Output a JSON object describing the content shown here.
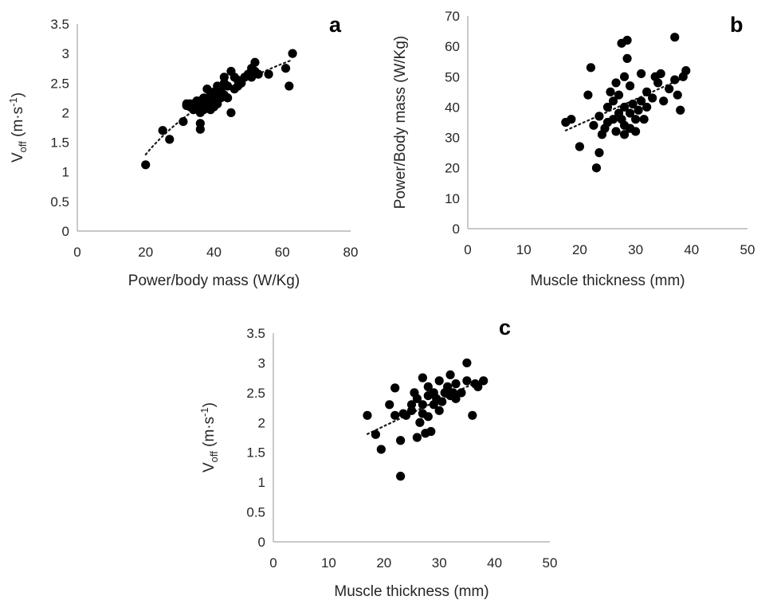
{
  "chart_data": [
    {
      "id": "a",
      "type": "scatter",
      "panel_label": "a",
      "xlabel": "Power/body mass (W/Kg)",
      "ylabel": {
        "main": "V",
        "sub": "off",
        "unit_open": "  (m·s",
        "unit_sup": "-1",
        "unit_close": ")"
      },
      "xlim": [
        0,
        80
      ],
      "ylim": [
        0,
        3.5
      ],
      "xticks": [
        0,
        20,
        40,
        60,
        80
      ],
      "yticks": [
        0,
        0.5,
        1,
        1.5,
        2,
        2.5,
        3,
        3.5
      ],
      "trendline": "logarithmic",
      "points": [
        [
          20,
          1.12
        ],
        [
          25,
          1.7
        ],
        [
          27,
          1.55
        ],
        [
          31,
          1.85
        ],
        [
          32,
          2.12
        ],
        [
          32,
          2.15
        ],
        [
          33,
          2.1
        ],
        [
          33,
          2.15
        ],
        [
          34,
          2.05
        ],
        [
          34,
          2.15
        ],
        [
          35,
          2.1
        ],
        [
          35,
          2.2
        ],
        [
          36,
          1.72
        ],
        [
          36,
          1.82
        ],
        [
          36,
          2.0
        ],
        [
          36,
          2.1
        ],
        [
          36,
          2.2
        ],
        [
          37,
          2.05
        ],
        [
          37,
          2.15
        ],
        [
          37,
          2.25
        ],
        [
          38,
          2.1
        ],
        [
          38,
          2.2
        ],
        [
          38,
          2.4
        ],
        [
          39,
          2.05
        ],
        [
          39,
          2.15
        ],
        [
          39,
          2.3
        ],
        [
          40,
          2.1
        ],
        [
          40,
          2.2
        ],
        [
          40,
          2.35
        ],
        [
          41,
          2.15
        ],
        [
          41,
          2.3
        ],
        [
          41,
          2.45
        ],
        [
          42,
          2.25
        ],
        [
          42,
          2.4
        ],
        [
          43,
          2.3
        ],
        [
          43,
          2.5
        ],
        [
          43,
          2.6
        ],
        [
          44,
          2.25
        ],
        [
          44,
          2.45
        ],
        [
          45,
          2.0
        ],
        [
          45,
          2.7
        ],
        [
          46,
          2.4
        ],
        [
          46,
          2.6
        ],
        [
          47,
          2.45
        ],
        [
          47,
          2.55
        ],
        [
          48,
          2.5
        ],
        [
          49,
          2.6
        ],
        [
          50,
          2.65
        ],
        [
          51,
          2.6
        ],
        [
          51,
          2.75
        ],
        [
          52,
          2.85
        ],
        [
          52,
          2.7
        ],
        [
          53,
          2.65
        ],
        [
          56,
          2.65
        ],
        [
          61,
          2.75
        ],
        [
          62,
          2.45
        ],
        [
          63,
          3.0
        ]
      ]
    },
    {
      "id": "b",
      "type": "scatter",
      "panel_label": "b",
      "xlabel": "Muscle thickness (mm)",
      "ylabel": {
        "main": "Power/Body mass (W/Kg)"
      },
      "xlim": [
        0,
        50
      ],
      "ylim": [
        0,
        70
      ],
      "xticks": [
        0,
        10,
        20,
        30,
        40,
        50
      ],
      "yticks": [
        0,
        10,
        20,
        30,
        40,
        50,
        60,
        70
      ],
      "trendline": "linear",
      "points": [
        [
          17.5,
          35
        ],
        [
          18.5,
          36
        ],
        [
          20,
          27
        ],
        [
          21.5,
          44
        ],
        [
          22,
          53
        ],
        [
          22.5,
          34
        ],
        [
          23,
          20
        ],
        [
          23.5,
          25
        ],
        [
          23.5,
          37
        ],
        [
          24,
          31
        ],
        [
          24.5,
          33
        ],
        [
          25,
          35
        ],
        [
          25,
          40
        ],
        [
          25.5,
          45
        ],
        [
          26,
          36
        ],
        [
          26,
          42
        ],
        [
          26.5,
          32
        ],
        [
          26.5,
          48
        ],
        [
          27,
          38
        ],
        [
          27,
          44
        ],
        [
          27.5,
          36
        ],
        [
          27.5,
          61
        ],
        [
          28,
          31
        ],
        [
          28,
          34
        ],
        [
          28,
          40
        ],
        [
          28,
          50
        ],
        [
          28.5,
          56
        ],
        [
          28.5,
          62
        ],
        [
          29,
          33
        ],
        [
          29,
          38
        ],
        [
          29,
          47
        ],
        [
          29.5,
          41
        ],
        [
          30,
          32
        ],
        [
          30,
          36
        ],
        [
          30.5,
          39
        ],
        [
          31,
          42
        ],
        [
          31,
          51
        ],
        [
          31.5,
          36
        ],
        [
          32,
          45
        ],
        [
          32,
          40
        ],
        [
          33,
          43
        ],
        [
          33.5,
          50
        ],
        [
          34,
          48
        ],
        [
          34.5,
          51
        ],
        [
          35,
          42
        ],
        [
          36,
          46
        ],
        [
          37,
          63
        ],
        [
          37,
          49
        ],
        [
          37.5,
          44
        ],
        [
          38,
          39
        ],
        [
          38.5,
          50
        ],
        [
          39,
          52
        ]
      ]
    },
    {
      "id": "c",
      "type": "scatter",
      "panel_label": "c",
      "xlabel": "Muscle thickness (mm)",
      "ylabel": {
        "main": "V",
        "sub": "off",
        "unit_open": "  (m·s",
        "unit_sup": "-1",
        "unit_close": ")"
      },
      "xlim": [
        0,
        50
      ],
      "ylim": [
        0,
        3.5
      ],
      "xticks": [
        0,
        10,
        20,
        30,
        40,
        50
      ],
      "yticks": [
        0,
        0.5,
        1,
        1.5,
        2,
        2.5,
        3,
        3.5
      ],
      "trendline": "linear",
      "points": [
        [
          17,
          2.12
        ],
        [
          18.5,
          1.8
        ],
        [
          19.5,
          1.55
        ],
        [
          21,
          2.3
        ],
        [
          22,
          2.12
        ],
        [
          22,
          2.58
        ],
        [
          23,
          1.1
        ],
        [
          23,
          1.7
        ],
        [
          23.5,
          2.15
        ],
        [
          24,
          2.12
        ],
        [
          25,
          2.2
        ],
        [
          25,
          2.3
        ],
        [
          25.5,
          2.5
        ],
        [
          26,
          1.75
        ],
        [
          26,
          2.4
        ],
        [
          26.5,
          2.0
        ],
        [
          27,
          2.15
        ],
        [
          27,
          2.3
        ],
        [
          27,
          2.75
        ],
        [
          27.5,
          1.82
        ],
        [
          28,
          2.1
        ],
        [
          28,
          2.45
        ],
        [
          28,
          2.6
        ],
        [
          28.5,
          1.85
        ],
        [
          29,
          2.3
        ],
        [
          29,
          2.5
        ],
        [
          29.5,
          2.4
        ],
        [
          30,
          2.2
        ],
        [
          30,
          2.7
        ],
        [
          30.5,
          2.35
        ],
        [
          31,
          2.5
        ],
        [
          31.5,
          2.6
        ],
        [
          32,
          2.45
        ],
        [
          32,
          2.8
        ],
        [
          32.5,
          2.5
        ],
        [
          33,
          2.4
        ],
        [
          33,
          2.65
        ],
        [
          34,
          2.5
        ],
        [
          35,
          3.0
        ],
        [
          35,
          2.7
        ],
        [
          36,
          2.12
        ],
        [
          36.5,
          2.65
        ],
        [
          37,
          2.6
        ],
        [
          38,
          2.7
        ]
      ]
    }
  ]
}
